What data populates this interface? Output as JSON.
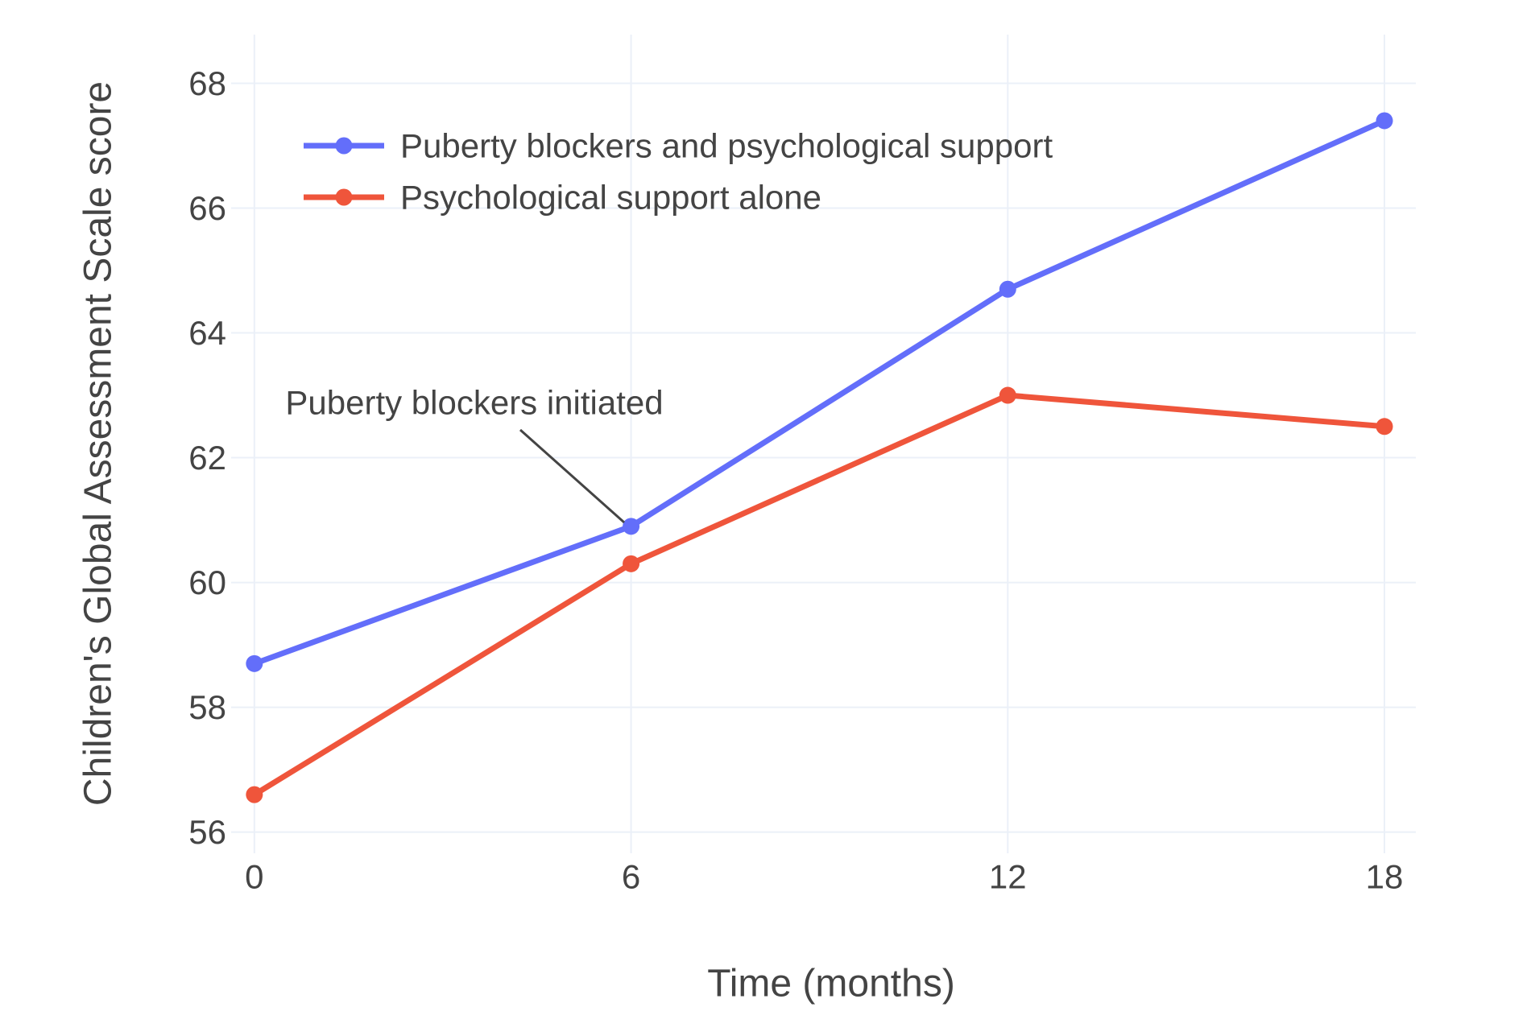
{
  "chart_data": {
    "type": "line",
    "x": [
      0,
      6,
      12,
      18
    ],
    "series": [
      {
        "name": "Puberty blockers and psychological support",
        "values": [
          58.7,
          60.9,
          64.7,
          67.4
        ],
        "color": "#636EFA"
      },
      {
        "name": "Psychological support alone",
        "values": [
          56.6,
          60.3,
          63.0,
          62.5
        ],
        "color": "#EF553B"
      }
    ],
    "title": "",
    "xlabel": "Time (months)",
    "ylabel": "Children's Global Assessment Scale score",
    "xticks": [
      0,
      6,
      12,
      18
    ],
    "yticks": [
      56,
      58,
      60,
      62,
      64,
      66,
      68
    ],
    "xlim": [
      -0.37,
      18.5
    ],
    "ylim": [
      55.66,
      68.78
    ],
    "grid": true,
    "legend_position": "top-left-inside",
    "annotation": {
      "text": "Puberty blockers initiated",
      "target_x": 6,
      "target_y": 60.9
    },
    "colors": {
      "grid": "#EBF0F8",
      "text": "#444444",
      "background": "#FFFFFF",
      "annotation_line": "#444444"
    }
  }
}
